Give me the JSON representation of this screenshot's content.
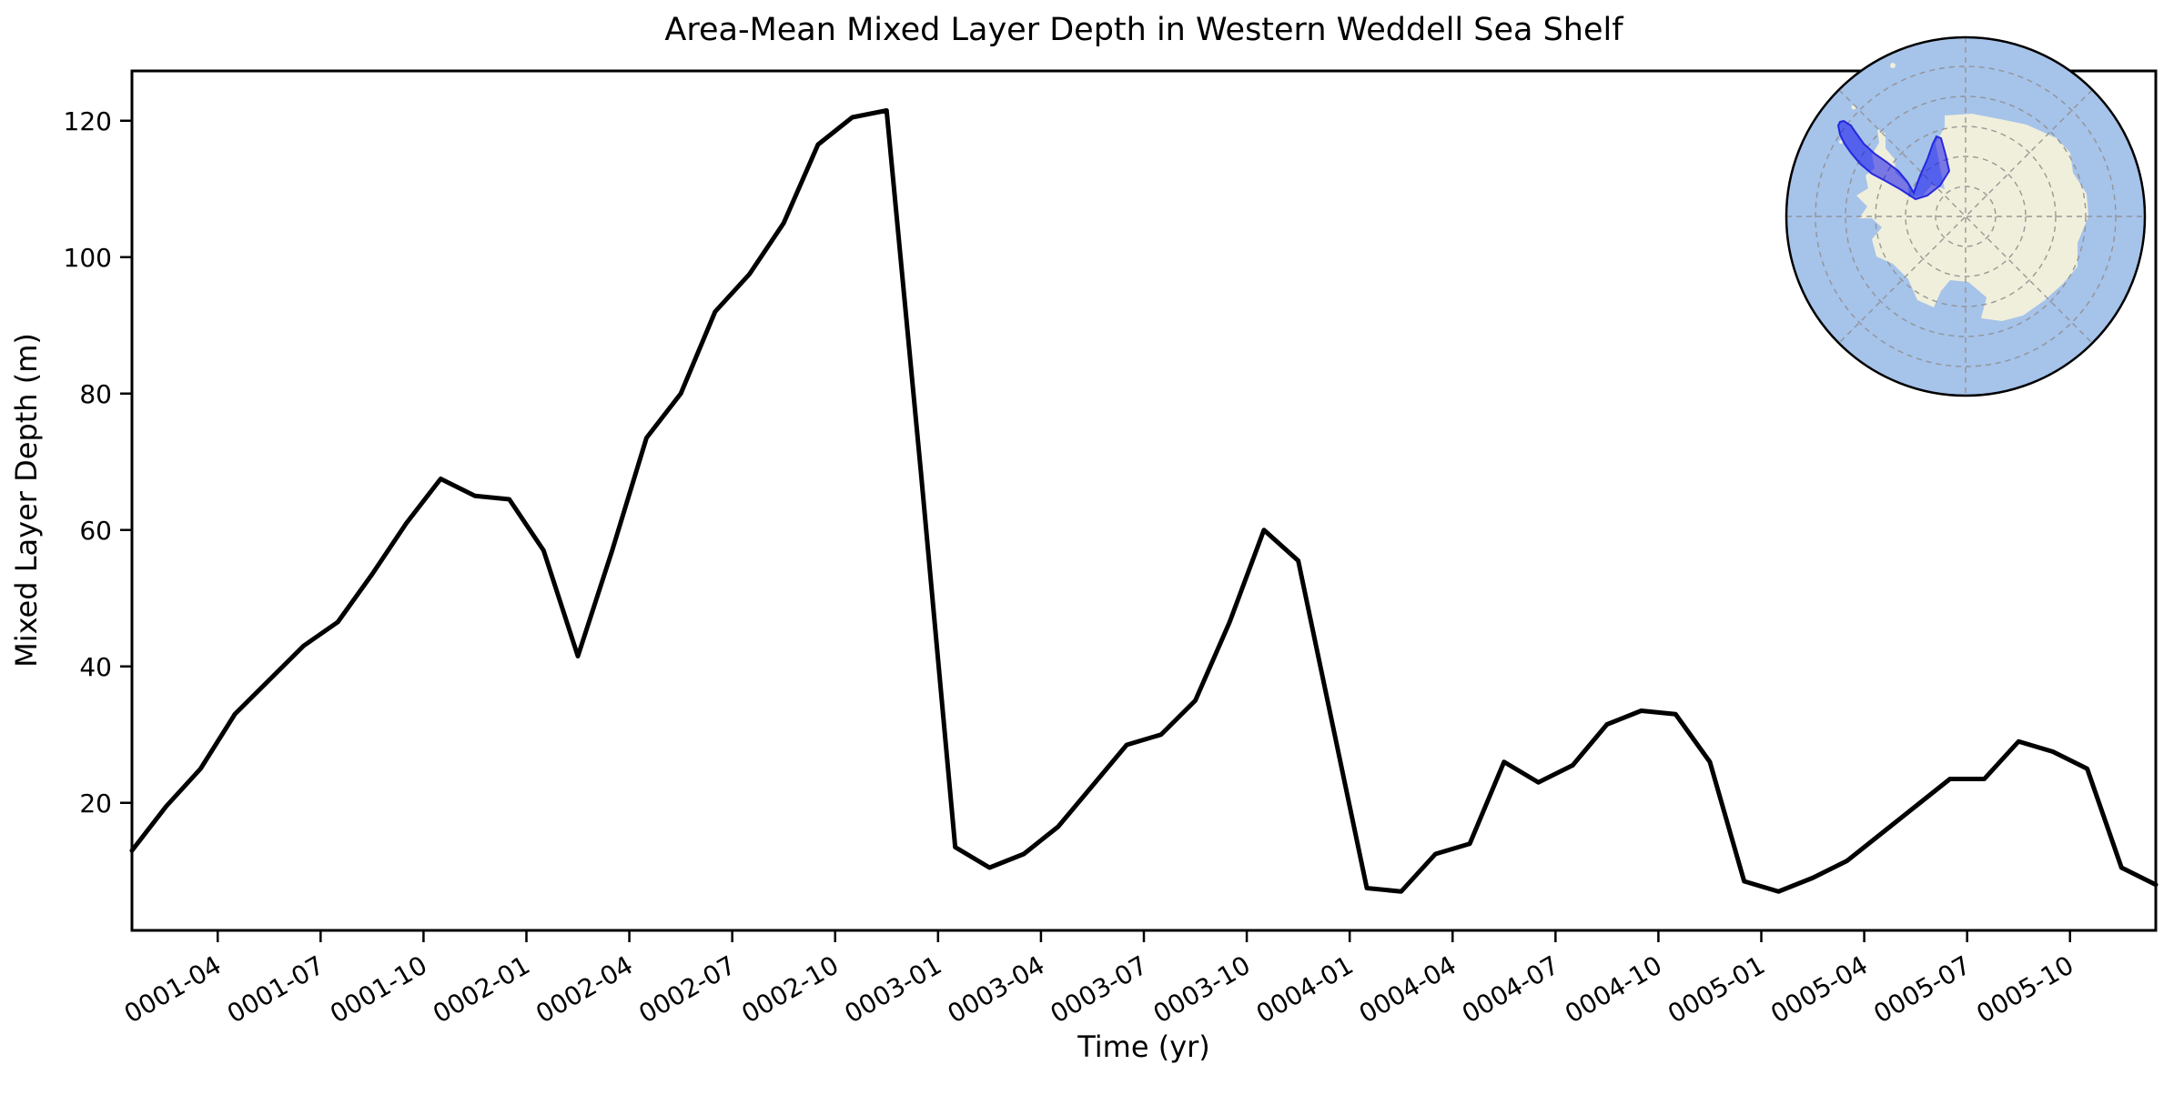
{
  "title": "Area-Mean Mixed Layer Depth in Western Weddell Sea Shelf",
  "chart_data": {
    "type": "line",
    "title": "Area-Mean Mixed Layer Depth in Western Weddell Sea Shelf",
    "xlabel": "Time (yr)",
    "ylabel": "Mixed Layer Depth (m)",
    "grid": false,
    "legend": "none",
    "line_color": "#000000",
    "line_width": 5,
    "ylim": [
      1.3,
      127.3
    ],
    "y_ticks": [
      20,
      40,
      60,
      80,
      100,
      120
    ],
    "x_tick_labels": [
      "0001-04",
      "0001-07",
      "0001-10",
      "0002-01",
      "0002-04",
      "0002-07",
      "0002-10",
      "0003-01",
      "0003-04",
      "0003-07",
      "0003-10",
      "0004-01",
      "0004-04",
      "0004-07",
      "0004-10",
      "0005-01",
      "0005-04",
      "0005-07",
      "0005-10"
    ],
    "x": [
      "0001-01",
      "0001-02",
      "0001-03",
      "0001-04",
      "0001-05",
      "0001-06",
      "0001-07",
      "0001-08",
      "0001-09",
      "0001-10",
      "0001-11",
      "0001-12",
      "0002-01",
      "0002-02",
      "0002-03",
      "0002-04",
      "0002-05",
      "0002-06",
      "0002-07",
      "0002-08",
      "0002-09",
      "0002-10",
      "0002-11",
      "0002-12",
      "0003-01",
      "0003-02",
      "0003-03",
      "0003-04",
      "0003-05",
      "0003-06",
      "0003-07",
      "0003-08",
      "0003-09",
      "0003-10",
      "0003-11",
      "0003-12",
      "0004-01",
      "0004-02",
      "0004-03",
      "0004-04",
      "0004-05",
      "0004-06",
      "0004-07",
      "0004-08",
      "0004-09",
      "0004-10",
      "0004-11",
      "0004-12",
      "0005-01",
      "0005-02",
      "0005-03",
      "0005-04",
      "0005-05",
      "0005-06",
      "0005-07",
      "0005-08",
      "0005-09",
      "0005-10",
      "0005-11",
      "0005-12"
    ],
    "series": [
      {
        "name": "Area-mean mixed layer depth",
        "values": [
          13.0,
          19.5,
          25.0,
          33.0,
          38.0,
          43.0,
          46.5,
          53.5,
          61.0,
          67.5,
          65.0,
          64.5,
          57.0,
          41.5,
          57.0,
          73.5,
          80.0,
          92.0,
          97.5,
          105.0,
          116.5,
          120.5,
          121.5,
          68.5,
          13.5,
          10.5,
          12.5,
          16.5,
          22.5,
          28.5,
          30.0,
          35.0,
          46.5,
          60.0,
          55.5,
          31.5,
          7.5,
          7.0,
          12.5,
          14.0,
          26.0,
          23.0,
          25.5,
          31.5,
          33.5,
          33.0,
          26.0,
          8.5,
          7.0,
          9.0,
          11.5,
          15.5,
          19.5,
          23.5,
          23.5,
          29.0,
          27.5,
          25.0,
          10.5,
          8.0
        ]
      }
    ]
  },
  "inset_map": {
    "description": "South polar stereographic map of Antarctica with highlighted Western Weddell Sea shelf region",
    "ocean_color": "#a6c3ea",
    "land_color": "#f0efdb",
    "graticule_color": "#8f8f8f",
    "region_fill": "#0000ee",
    "region_edge": "#2222dd",
    "border_color": "#000000"
  }
}
